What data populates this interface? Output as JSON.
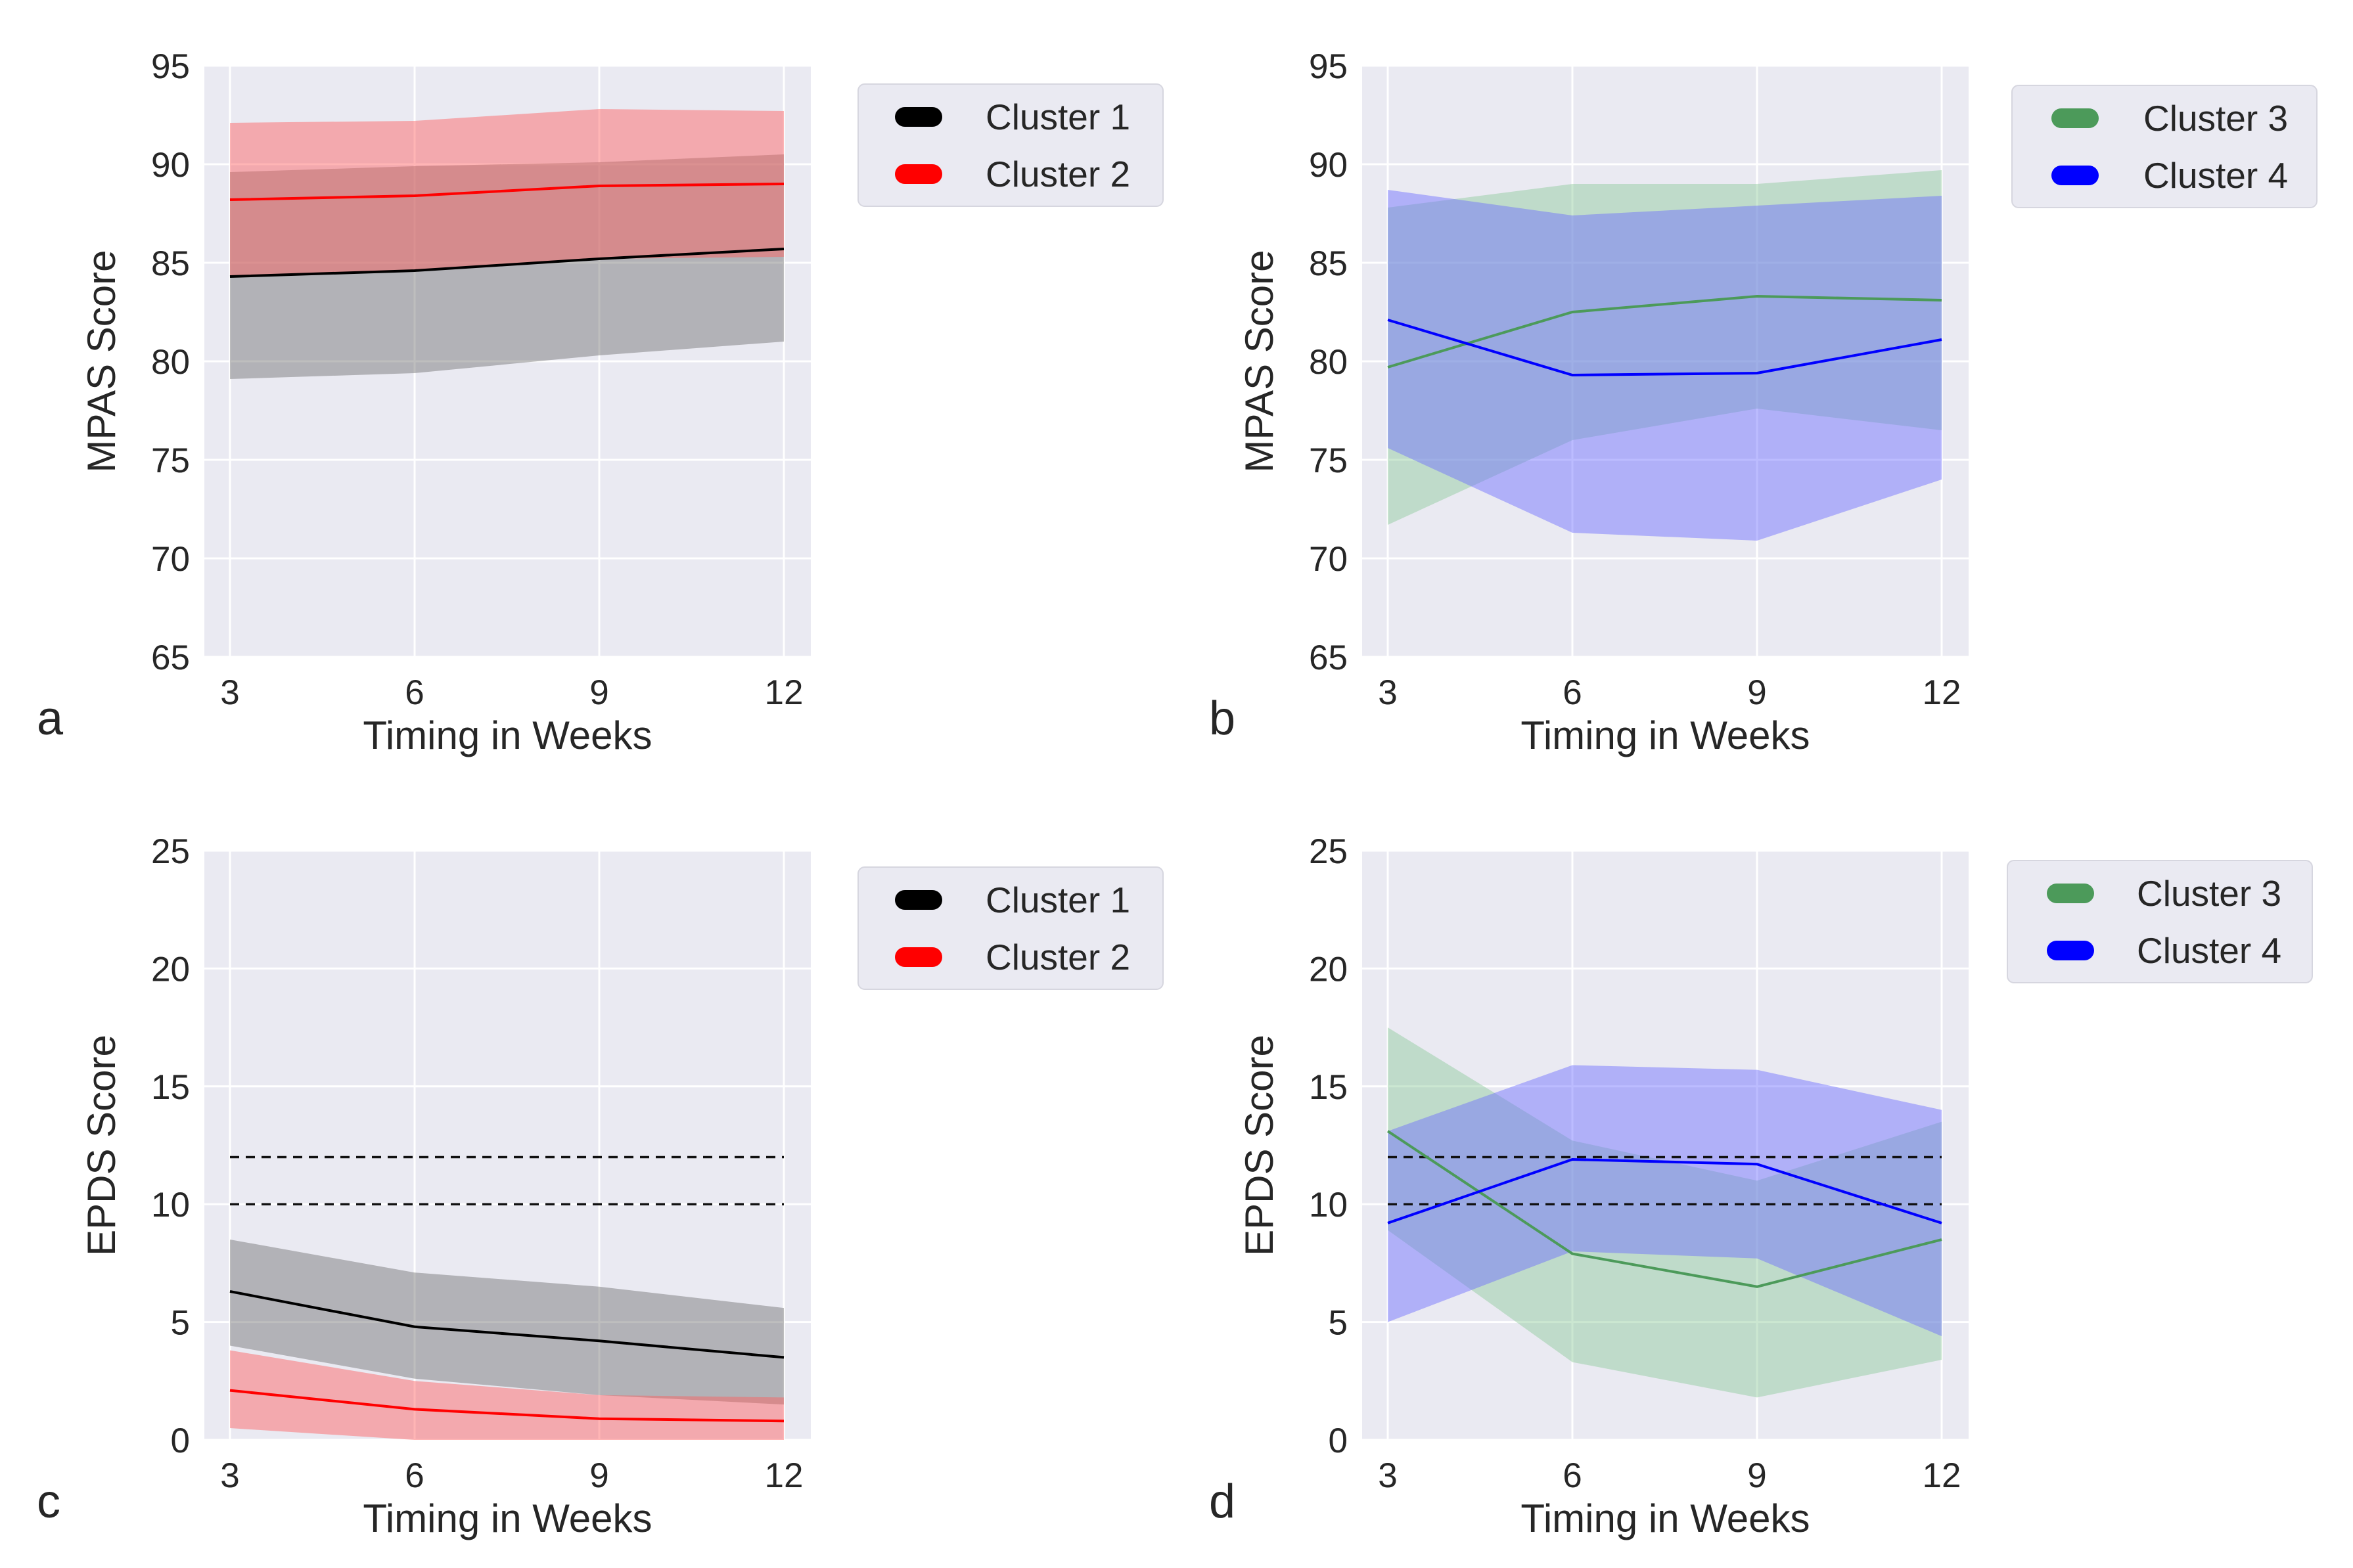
{
  "chart_data": [
    {
      "panel": "a",
      "type": "line",
      "xlabel": "Timing in Weeks",
      "ylabel": "MPAS Score",
      "x": [
        3,
        6,
        9,
        12
      ],
      "xticks": [
        "3",
        "6",
        "9",
        "12"
      ],
      "ylim": [
        65,
        95
      ],
      "yticks": [
        "65",
        "70",
        "75",
        "80",
        "85",
        "90",
        "95"
      ],
      "grid": true,
      "legend_position": "outside-top-right",
      "reference_lines": [],
      "series": [
        {
          "name": "Cluster 1",
          "color": "#000000",
          "band_color": "#6e6e6e",
          "values": [
            84.3,
            84.6,
            85.2,
            85.7
          ],
          "lower": [
            79.1,
            79.4,
            80.3,
            81.0
          ],
          "upper": [
            89.6,
            89.9,
            90.1,
            90.5
          ]
        },
        {
          "name": "Cluster 2",
          "color": "#ff0000",
          "band_color": "#ff5a5a",
          "values": [
            88.2,
            88.4,
            88.9,
            89.0
          ],
          "lower": [
            84.3,
            84.6,
            85.2,
            85.3
          ],
          "upper": [
            92.1,
            92.2,
            92.8,
            92.7
          ]
        }
      ]
    },
    {
      "panel": "b",
      "type": "line",
      "xlabel": "Timing in Weeks",
      "ylabel": "MPAS Score",
      "x": [
        3,
        6,
        9,
        12
      ],
      "xticks": [
        "3",
        "6",
        "9",
        "12"
      ],
      "ylim": [
        65,
        95
      ],
      "yticks": [
        "65",
        "70",
        "75",
        "80",
        "85",
        "90",
        "95"
      ],
      "grid": true,
      "legend_position": "outside-top-right",
      "reference_lines": [],
      "series": [
        {
          "name": "Cluster 3",
          "color": "#4c9a5a",
          "band_color": "#8cc99a",
          "values": [
            79.7,
            82.5,
            83.3,
            83.1
          ],
          "lower": [
            71.7,
            76.0,
            77.6,
            76.5
          ],
          "upper": [
            87.8,
            89.0,
            89.0,
            89.7
          ]
        },
        {
          "name": "Cluster 4",
          "color": "#0000ff",
          "band_color": "#6a6aff",
          "values": [
            82.1,
            79.3,
            79.4,
            81.1
          ],
          "lower": [
            75.6,
            71.3,
            70.9,
            74.0
          ],
          "upper": [
            88.7,
            87.4,
            87.9,
            88.4
          ]
        }
      ]
    },
    {
      "panel": "c",
      "type": "line",
      "xlabel": "Timing in Weeks",
      "ylabel": "EPDS Score",
      "x": [
        3,
        6,
        9,
        12
      ],
      "xticks": [
        "3",
        "6",
        "9",
        "12"
      ],
      "ylim": [
        0,
        25
      ],
      "yticks": [
        "0",
        "5",
        "10",
        "15",
        "20",
        "25"
      ],
      "grid": true,
      "legend_position": "outside-top-right",
      "reference_lines": [
        10,
        12
      ],
      "series": [
        {
          "name": "Cluster 1",
          "color": "#000000",
          "band_color": "#6e6e6e",
          "values": [
            6.3,
            4.8,
            4.2,
            3.5
          ],
          "lower": [
            4.0,
            2.6,
            1.9,
            1.5
          ],
          "upper": [
            8.5,
            7.1,
            6.5,
            5.6
          ]
        },
        {
          "name": "Cluster 2",
          "color": "#ff0000",
          "band_color": "#ff5a5a",
          "values": [
            2.1,
            1.3,
            0.9,
            0.8
          ],
          "lower": [
            0.5,
            0.0,
            0.0,
            0.0
          ],
          "upper": [
            3.8,
            2.5,
            1.9,
            1.8
          ]
        }
      ]
    },
    {
      "panel": "d",
      "type": "line",
      "xlabel": "Timing in Weeks",
      "ylabel": "EPDS Score",
      "x": [
        3,
        6,
        9,
        12
      ],
      "xticks": [
        "3",
        "6",
        "9",
        "12"
      ],
      "ylim": [
        0,
        25
      ],
      "yticks": [
        "0",
        "5",
        "10",
        "15",
        "20",
        "25"
      ],
      "grid": true,
      "legend_position": "outside-top-right",
      "reference_lines": [
        10,
        12
      ],
      "series": [
        {
          "name": "Cluster 3",
          "color": "#4c9a5a",
          "band_color": "#8cc99a",
          "values": [
            13.1,
            7.9,
            6.5,
            8.5
          ],
          "lower": [
            8.9,
            3.3,
            1.8,
            3.4
          ],
          "upper": [
            17.5,
            12.7,
            11.0,
            13.5
          ]
        },
        {
          "name": "Cluster 4",
          "color": "#0000ff",
          "band_color": "#6a6aff",
          "values": [
            9.2,
            11.9,
            11.7,
            9.2
          ],
          "lower": [
            5.0,
            8.0,
            7.7,
            4.4
          ],
          "upper": [
            13.1,
            15.9,
            15.7,
            14.0
          ]
        }
      ]
    }
  ]
}
